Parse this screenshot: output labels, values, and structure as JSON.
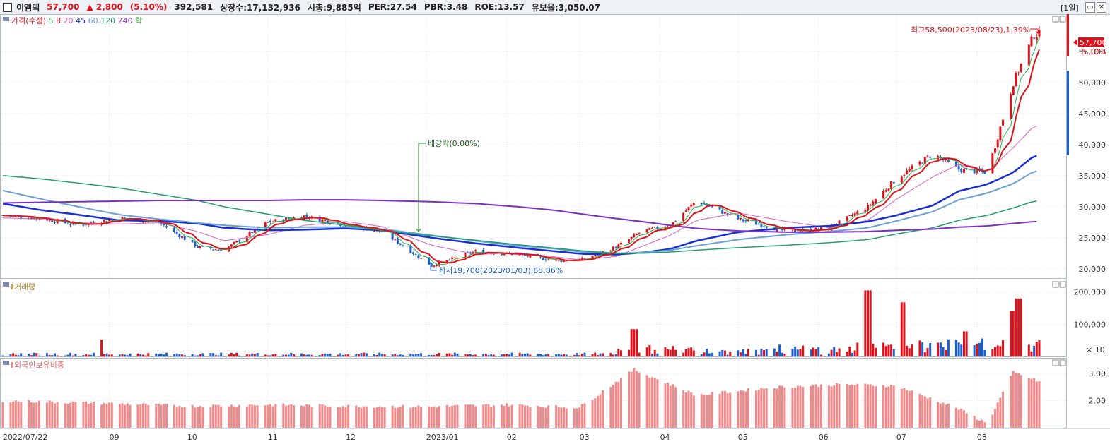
{
  "header": {
    "name": "이엠텍",
    "price": "57,700",
    "change": "▲ 2,800",
    "change_pct": "(5.10%)",
    "volume": "392,581",
    "listed": "상장수:17,132,936",
    "mcap": "시총:9,885억",
    "per": "PER:27.54",
    "pbr": "PBR:3.48",
    "roe": "ROE:13.57",
    "reserve": "유보율:3,050.07",
    "period": "[1일]"
  },
  "price_panel": {
    "legend": [
      {
        "text": "가격(수정)",
        "color": "#e0101a"
      },
      {
        "text": "5",
        "color": "#22b14c"
      },
      {
        "text": "8",
        "color": "#e0101a"
      },
      {
        "text": "20",
        "color": "#d860c8"
      },
      {
        "text": "45",
        "color": "#1a2fd0"
      },
      {
        "text": "60",
        "color": "#6aa0d8"
      },
      {
        "text": "120",
        "color": "#20a070"
      },
      {
        "text": "240",
        "color": "#7a2fc0"
      },
      {
        "text": "락",
        "color": "#1a8a1a"
      }
    ],
    "last_price": "57,700",
    "last_pct": "5.10%",
    "high_note": "최고58,500(2023/08/23),1.39%",
    "low_note": "최저19,700(2023/01/03),65.86%",
    "dividend_note": "배당락(0.00%)",
    "y_ticks": [
      "55,000",
      "50,000",
      "45,000",
      "40,000",
      "35,000",
      "30,000",
      "25,000",
      "20,000"
    ]
  },
  "volume_panel": {
    "title": "거래량",
    "y_ticks": [
      "200,000",
      "100,000"
    ],
    "unit": "× 10"
  },
  "foreign_panel": {
    "title": "외국인보유비중",
    "y_ticks": [
      "3.00",
      "2.00"
    ]
  },
  "x_labels": [
    "2022/07/22",
    "09",
    "10",
    "11",
    "12",
    "2023/01",
    "02",
    "03",
    "04",
    "05",
    "06",
    "07",
    "08"
  ],
  "colors": {
    "up": "#e0101a",
    "down": "#1a5fd0",
    "foreign": "#f08a8a",
    "neutral": "#222222",
    "accent": "#e0101a"
  },
  "chart_data": [
    {
      "type": "line",
      "title": "가격(수정)",
      "x": [
        "2022-07-22",
        "2022-08-05",
        "2022-08-20",
        "2022-09-05",
        "2022-09-20",
        "2022-10-05",
        "2022-10-15",
        "2022-11-01",
        "2022-11-15",
        "2022-12-01",
        "2022-12-15",
        "2023-01-03",
        "2023-01-20",
        "2023-02-05",
        "2023-02-20",
        "2023-03-02",
        "2023-03-15",
        "2023-03-25",
        "2023-04-05",
        "2023-04-15",
        "2023-05-01",
        "2023-05-20",
        "2023-06-05",
        "2023-06-20",
        "2023-07-01",
        "2023-07-15",
        "2023-07-25",
        "2023-08-05",
        "2023-08-15",
        "2023-08-23"
      ],
      "series": [
        {
          "name": "가격(수정)",
          "values": [
            28600,
            28200,
            27000,
            28200,
            27500,
            23500,
            23000,
            27500,
            28500,
            27000,
            26000,
            20500,
            22800,
            22300,
            21300,
            21500,
            23500,
            26000,
            27000,
            31000,
            28000,
            26000,
            26500,
            30000,
            34500,
            38500,
            36000,
            35500,
            50000,
            57700
          ]
        },
        {
          "name": "20",
          "values": [
            28200,
            28000,
            27400,
            27200,
            27400,
            26000,
            24500,
            25500,
            27000,
            27600,
            26800,
            23800,
            22300,
            22600,
            21900,
            21400,
            22000,
            23600,
            25400,
            27800,
            29000,
            27600,
            26600,
            27800,
            31200,
            34800,
            36800,
            35600,
            39500,
            43000
          ]
        },
        {
          "name": "45",
          "values": [
            30500,
            29500,
            28700,
            27800,
            27700,
            27300,
            26600,
            26200,
            26300,
            26500,
            26200,
            25000,
            24100,
            23400,
            22800,
            22400,
            22300,
            22600,
            23200,
            24500,
            25900,
            26600,
            26900,
            27600,
            28600,
            30200,
            32500,
            33600,
            35500,
            38200
          ]
        },
        {
          "name": "60",
          "values": [
            32600,
            31300,
            30000,
            28700,
            28000,
            27400,
            27000,
            26600,
            26700,
            26700,
            26400,
            25400,
            24500,
            23700,
            23200,
            22700,
            22500,
            22600,
            23000,
            23700,
            24700,
            25500,
            26000,
            26600,
            27700,
            29200,
            31100,
            32200,
            33700,
            35700
          ]
        },
        {
          "name": "120",
          "values": [
            35000,
            34500,
            33800,
            33000,
            32000,
            31000,
            30000,
            28800,
            27800,
            27000,
            26200,
            25300,
            24600,
            23900,
            23300,
            22900,
            22500,
            22500,
            22700,
            23000,
            23400,
            23800,
            24200,
            24700,
            25600,
            26600,
            27800,
            28600,
            29800,
            30900
          ]
        },
        {
          "name": "240",
          "values": [
            30600,
            30700,
            30800,
            30900,
            31000,
            31000,
            31000,
            31000,
            31100,
            31100,
            31000,
            30800,
            30500,
            30000,
            29400,
            28800,
            28100,
            27600,
            27000,
            26500,
            26100,
            25900,
            25900,
            26000,
            26200,
            26400,
            26700,
            26900,
            27300,
            27600
          ]
        }
      ],
      "ylim": [
        18500,
        61000
      ]
    },
    {
      "type": "bar",
      "title": "거래량",
      "note": "× 10",
      "spikes": [
        {
          "date": "2022-08-28",
          "value": 52000
        },
        {
          "date": "2023-03-22",
          "value": 85000
        },
        {
          "date": "2023-06-20",
          "value": 205000
        },
        {
          "date": "2023-07-03",
          "value": 168000
        },
        {
          "date": "2023-07-28",
          "value": 78000
        },
        {
          "date": "2023-08-14",
          "value": 142000
        },
        {
          "date": "2023-08-17",
          "value": 180000
        }
      ],
      "ylim": [
        0,
        230000
      ]
    },
    {
      "type": "bar",
      "title": "외국인보유비중",
      "x": [
        "2022-07-22",
        "2022-09-01",
        "2022-10-01",
        "2022-11-01",
        "2022-12-01",
        "2023-01-01",
        "2023-02-01",
        "2023-03-01",
        "2023-03-22",
        "2023-04-15",
        "2023-05-15",
        "2023-06-10",
        "2023-07-01",
        "2023-07-25",
        "2023-08-05",
        "2023-08-15",
        "2023-08-25"
      ],
      "values": [
        2.0,
        1.9,
        1.8,
        1.85,
        1.8,
        1.78,
        1.85,
        1.75,
        3.15,
        2.2,
        2.5,
        2.6,
        2.55,
        1.7,
        1.15,
        3.05,
        2.7
      ],
      "ylim": [
        1.0,
        3.5
      ]
    }
  ]
}
